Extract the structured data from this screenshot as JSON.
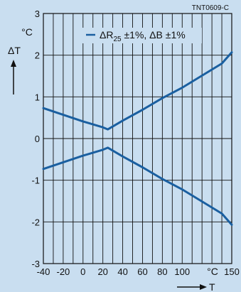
{
  "chart_data": {
    "type": "line",
    "ref_code": "TNT0609-C",
    "ylabel": "ΔT",
    "yunit": "°C",
    "xlabel": "T",
    "xunit": "°C",
    "xlim": [
      -40,
      150
    ],
    "ylim": [
      -3,
      3
    ],
    "x_ticks": [
      "-40",
      "-20",
      "0",
      "20",
      "40",
      "60",
      "80",
      "100",
      "150"
    ],
    "x_tick_values": [
      -40,
      -20,
      0,
      20,
      40,
      60,
      80,
      100,
      150
    ],
    "y_ticks": [
      "3",
      "2",
      "1",
      "0",
      "-1",
      "-2",
      "-3"
    ],
    "y_tick_values": [
      3,
      2,
      1,
      0,
      -1,
      -2,
      -3
    ],
    "grid": true,
    "line_color": "#1a5fa0",
    "legend": {
      "prefix": "ΔR",
      "subscript": "25",
      "suffix": " ±1%, ΔB ±1%",
      "position": "top-center"
    },
    "series": [
      {
        "role": "upper",
        "x": [
          -40,
          0,
          20,
          25,
          40,
          60,
          80,
          100,
          120,
          140,
          150
        ],
        "y": [
          0.73,
          0.41,
          0.27,
          0.22,
          0.43,
          0.69,
          0.97,
          1.22,
          1.51,
          1.8,
          2.07
        ]
      },
      {
        "role": "lower",
        "x": [
          -40,
          0,
          20,
          25,
          40,
          60,
          80,
          100,
          120,
          140,
          150
        ],
        "y": [
          -0.73,
          -0.41,
          -0.27,
          -0.22,
          -0.43,
          -0.69,
          -0.97,
          -1.22,
          -1.51,
          -1.8,
          -2.07
        ]
      }
    ]
  }
}
